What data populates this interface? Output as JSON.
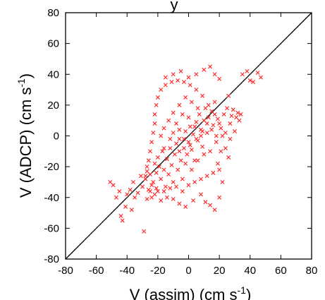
{
  "chart_data": {
    "type": "scatter",
    "title": "y",
    "xlabel": "V (assim) (cm s",
    "ylabel": "V (ADCP) (cm s",
    "unit_exponent": "-1",
    "xlim": [
      -80,
      80
    ],
    "ylim": [
      -80,
      80
    ],
    "xticks": [
      -80,
      -60,
      -40,
      -20,
      0,
      20,
      40,
      60,
      80
    ],
    "yticks": [
      -80,
      -60,
      -40,
      -20,
      0,
      20,
      40,
      60,
      80
    ],
    "grid": false,
    "marker": "x",
    "colors": {
      "points": "#ff2020",
      "reference_line": "#000000"
    },
    "reference_line": {
      "from": [
        -80,
        -80
      ],
      "to": [
        80,
        80
      ]
    },
    "series": [
      {
        "values": [
          [
            -51,
            -30
          ],
          [
            -49,
            -32
          ],
          [
            -47,
            -40
          ],
          [
            -45,
            -36
          ],
          [
            -44,
            -52
          ],
          [
            -43,
            -55
          ],
          [
            -41,
            -46
          ],
          [
            -40,
            -38
          ],
          [
            -38,
            -35
          ],
          [
            -37,
            -48
          ],
          [
            -36,
            -30
          ],
          [
            -35,
            -40
          ],
          [
            -33,
            -37
          ],
          [
            -31,
            -26
          ],
          [
            -30,
            -33
          ],
          [
            -29,
            -62
          ],
          [
            -28,
            -28
          ],
          [
            -27,
            -23
          ],
          [
            -26,
            -35
          ],
          [
            -25,
            -25
          ],
          [
            -24,
            -32
          ],
          [
            -23,
            -30
          ],
          [
            -22,
            -18
          ],
          [
            -21,
            -24
          ],
          [
            -20,
            -36
          ],
          [
            -19,
            -20
          ],
          [
            -18,
            -28
          ],
          [
            -17,
            -10
          ],
          [
            -16,
            -22
          ],
          [
            -15,
            -33
          ],
          [
            -14,
            -15
          ],
          [
            -13,
            -25
          ],
          [
            -12,
            -8
          ],
          [
            -11,
            -19
          ],
          [
            -10,
            -30
          ],
          [
            -9,
            -12
          ],
          [
            -8,
            -5
          ],
          [
            -7,
            -22
          ],
          [
            -6,
            -2
          ],
          [
            -5,
            -16
          ],
          [
            -4,
            -28
          ],
          [
            -3,
            -8
          ],
          [
            -2,
            3
          ],
          [
            -1,
            -12
          ],
          [
            0,
            -4
          ],
          [
            1,
            6
          ],
          [
            2,
            -9
          ],
          [
            3,
            1
          ],
          [
            4,
            -16
          ],
          [
            5,
            9
          ],
          [
            6,
            -3
          ],
          [
            7,
            14
          ],
          [
            8,
            4
          ],
          [
            9,
            -7
          ],
          [
            10,
            10
          ],
          [
            11,
            18
          ],
          [
            12,
            2
          ],
          [
            13,
            12
          ],
          [
            14,
            -10
          ],
          [
            15,
            16
          ],
          [
            16,
            7
          ],
          [
            17,
            22
          ],
          [
            18,
            -4
          ],
          [
            19,
            11
          ],
          [
            20,
            -22
          ],
          [
            21,
            5
          ],
          [
            22,
            -30
          ],
          [
            23,
            14
          ],
          [
            24,
            2
          ],
          [
            25,
            18
          ],
          [
            26,
            26
          ],
          [
            27,
            8
          ],
          [
            28,
            13
          ],
          [
            29,
            17
          ],
          [
            30,
            3
          ],
          [
            31,
            12
          ],
          [
            32,
            15
          ],
          [
            33,
            10
          ],
          [
            34,
            14
          ],
          [
            35,
            40
          ],
          [
            38,
            42
          ],
          [
            40,
            36
          ],
          [
            42,
            35
          ],
          [
            45,
            41
          ],
          [
            47,
            38
          ],
          [
            20,
            -40
          ],
          [
            17,
            -48
          ],
          [
            14,
            -45
          ],
          [
            11,
            -43
          ],
          [
            8,
            -38
          ],
          [
            3,
            -42
          ],
          [
            -2,
            -46
          ],
          [
            -6,
            -44
          ],
          [
            -10,
            -41
          ],
          [
            -14,
            -40
          ],
          [
            -18,
            -42
          ],
          [
            -22,
            -38
          ],
          [
            -24,
            -40
          ],
          [
            -27,
            -41
          ],
          [
            -25,
            -36
          ],
          [
            -21,
            -34
          ],
          [
            -16,
            -36
          ],
          [
            -12,
            -34
          ],
          [
            -8,
            -33
          ],
          [
            -4,
            -36
          ],
          [
            0,
            -32
          ],
          [
            4,
            -30
          ],
          [
            8,
            -28
          ],
          [
            12,
            -26
          ],
          [
            16,
            -24
          ],
          [
            19,
            -18
          ],
          [
            21,
            -10
          ],
          [
            22,
            0
          ],
          [
            20,
            8
          ],
          [
            17,
            14
          ],
          [
            13,
            20
          ],
          [
            9,
            26
          ],
          [
            5,
            30
          ],
          [
            1,
            33
          ],
          [
            -3,
            35
          ],
          [
            -7,
            36
          ],
          [
            -11,
            35
          ],
          [
            -15,
            33
          ],
          [
            -18,
            30
          ],
          [
            -20,
            25
          ],
          [
            -21,
            20
          ],
          [
            -22,
            14
          ],
          [
            -22,
            8
          ],
          [
            -23,
            2
          ],
          [
            -24,
            -4
          ],
          [
            -25,
            -10
          ],
          [
            -26,
            -16
          ],
          [
            -27,
            -20
          ],
          [
            -28,
            -26
          ],
          [
            -15,
            38
          ],
          [
            -10,
            40
          ],
          [
            -5,
            42
          ],
          [
            0,
            38
          ],
          [
            5,
            40
          ],
          [
            10,
            43
          ],
          [
            14,
            45
          ],
          [
            17,
            40
          ],
          [
            20,
            37
          ],
          [
            -2,
            25
          ],
          [
            2,
            22
          ],
          [
            6,
            18
          ],
          [
            -6,
            20
          ],
          [
            -10,
            15
          ],
          [
            -13,
            10
          ],
          [
            -16,
            5
          ],
          [
            -8,
            8
          ],
          [
            -4,
            14
          ],
          [
            0,
            12
          ],
          [
            4,
            6
          ],
          [
            8,
            0
          ],
          [
            -12,
            -2
          ],
          [
            -16,
            -8
          ],
          [
            -20,
            -14
          ],
          [
            -6,
            -10
          ],
          [
            -2,
            -18
          ],
          [
            2,
            -22
          ],
          [
            6,
            -16
          ],
          [
            10,
            -12
          ],
          [
            -18,
            0
          ],
          [
            -10,
            2
          ],
          [
            -6,
            4
          ],
          [
            -3,
            -2
          ],
          [
            1,
            -6
          ],
          [
            5,
            -2
          ],
          [
            9,
            3
          ],
          [
            12,
            8
          ],
          [
            15,
            4
          ],
          [
            18,
            0
          ],
          [
            24,
            -8
          ],
          [
            26,
            -14
          ],
          [
            27,
            -2
          ]
        ]
      }
    ]
  }
}
